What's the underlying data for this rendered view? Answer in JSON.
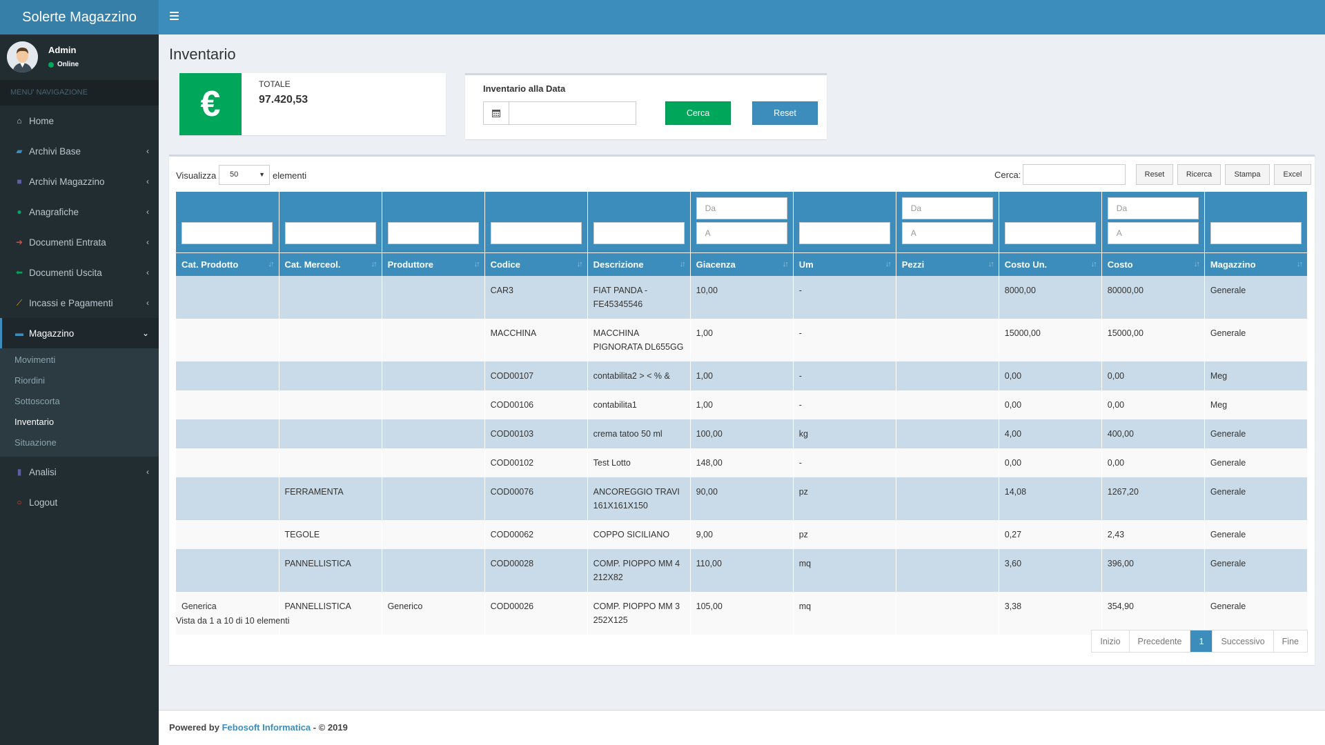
{
  "app": {
    "title": "Solerte Magazzino"
  },
  "user": {
    "name": "Admin",
    "status": "Online"
  },
  "nav": {
    "header": "MENU' NAVIGAZIONE",
    "items": [
      {
        "label": "Home",
        "icon": "home-icon"
      },
      {
        "label": "Archivi Base",
        "icon": "book-icon"
      },
      {
        "label": "Archivi Magazzino",
        "icon": "archive-icon"
      },
      {
        "label": "Anagrafiche",
        "icon": "user-icon"
      },
      {
        "label": "Documenti Entrata",
        "icon": "arrow-right-icon"
      },
      {
        "label": "Documenti Uscita",
        "icon": "arrow-left-icon"
      },
      {
        "label": "Incassi e Pagamenti",
        "icon": "line-chart-icon"
      },
      {
        "label": "Magazzino",
        "icon": "truck-icon"
      },
      {
        "label": "Analisi",
        "icon": "bar-chart-icon"
      },
      {
        "label": "Logout",
        "icon": "power-icon"
      }
    ],
    "submenu": [
      "Movimenti",
      "Riordini",
      "Sottoscorta",
      "Inventario",
      "Situazione"
    ]
  },
  "page": {
    "title": "Inventario"
  },
  "total_box": {
    "label": "TOTALE",
    "value": "97.420,53",
    "icon_glyph": "€"
  },
  "date_filter": {
    "label": "Inventario alla Data",
    "value": "",
    "search_button": "Cerca",
    "reset_button": "Reset"
  },
  "table_controls": {
    "show_label": "Visualizza",
    "page_size": "50",
    "elements_label": "elementi",
    "search_label": "Cerca:",
    "buttons": [
      "Reset",
      "Ricerca",
      "Stampa",
      "Excel"
    ]
  },
  "range_placeholders": {
    "from": "Da",
    "to": "A"
  },
  "columns": [
    "Cat. Prodotto",
    "Cat. Merceol.",
    "Produttore",
    "Codice",
    "Descrizione",
    "Giacenza",
    "Um",
    "Pezzi",
    "Costo Un.",
    "Costo",
    "Magazzino"
  ],
  "rows": [
    [
      "",
      "",
      "",
      "CAR3",
      "FIAT PANDA - FE45345546",
      "10,00",
      "-",
      "",
      "8000,00",
      "80000,00",
      "Generale"
    ],
    [
      "",
      "",
      "",
      "MACCHINA",
      "MACCHINA PIGNORATA DL655GG",
      "1,00",
      "-",
      "",
      "15000,00",
      "15000,00",
      "Generale"
    ],
    [
      "",
      "",
      "",
      "COD00107",
      "contabilita2 > < % &",
      "1,00",
      "-",
      "",
      "0,00",
      "0,00",
      "Meg"
    ],
    [
      "",
      "",
      "",
      "COD00106",
      "contabilita1",
      "1,00",
      "-",
      "",
      "0,00",
      "0,00",
      "Meg"
    ],
    [
      "",
      "",
      "",
      "COD00103",
      "crema tatoo 50 ml",
      "100,00",
      "kg",
      "",
      "4,00",
      "400,00",
      "Generale"
    ],
    [
      "",
      "",
      "",
      "COD00102",
      "Test Lotto",
      "148,00",
      "-",
      "",
      "0,00",
      "0,00",
      "Generale"
    ],
    [
      "",
      "FERRAMENTA",
      "",
      "COD00076",
      "ANCOREGGIO TRAVI 161X161X150",
      "90,00",
      "pz",
      "",
      "14,08",
      "1267,20",
      "Generale"
    ],
    [
      "",
      "TEGOLE",
      "",
      "COD00062",
      "COPPO SICILIANO",
      "9,00",
      "pz",
      "",
      "0,27",
      "2,43",
      "Generale"
    ],
    [
      "",
      "PANNELLISTICA",
      "",
      "COD00028",
      "COMP. PIOPPO MM 4 212X82",
      "110,00",
      "mq",
      "",
      "3,60",
      "396,00",
      "Generale"
    ],
    [
      "Generica",
      "PANNELLISTICA",
      "Generico",
      "COD00026",
      "COMP. PIOPPO MM 3 252X125",
      "105,00",
      "mq",
      "",
      "3,38",
      "354,90",
      "Generale"
    ]
  ],
  "table_info": "Vista da 1 a 10 di 10 elementi",
  "pagination": {
    "first": "Inizio",
    "prev": "Precedente",
    "current": "1",
    "next": "Successivo",
    "last": "Fine"
  },
  "footer": {
    "prefix": "Powered by",
    "company": "Febosoft Informatica",
    "suffix": "- © 2019"
  },
  "colors": {
    "primary": "#3c8dbc",
    "header_dark": "#367fa9",
    "sidebar": "#222d32",
    "success": "#00a65a",
    "row_odd": "#c9dbe8"
  }
}
